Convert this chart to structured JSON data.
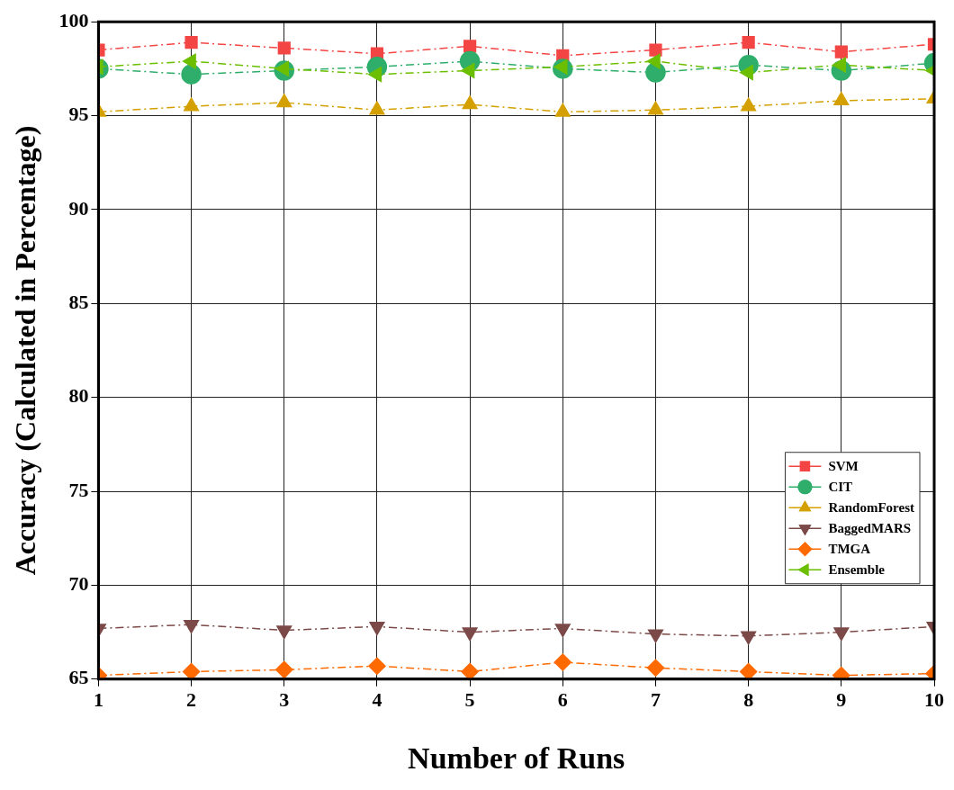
{
  "chart_data": {
    "type": "line",
    "xlabel": "Number of Runs",
    "ylabel": "Accuracy (Calculated in Percentage)",
    "x": [
      1,
      2,
      3,
      4,
      5,
      6,
      7,
      8,
      9,
      10
    ],
    "xlim": [
      1,
      10
    ],
    "xticks": [
      1,
      2,
      3,
      4,
      5,
      6,
      7,
      8,
      9,
      10
    ],
    "ylim": [
      65,
      100
    ],
    "yticks": [
      65,
      70,
      75,
      80,
      85,
      90,
      95,
      100
    ],
    "grid": true,
    "legend": "bottom right",
    "line_style": "dashed",
    "series": [
      {
        "name": "SVM",
        "color": "#f44545",
        "marker": "square",
        "values": [
          98.5,
          98.9,
          98.6,
          98.3,
          98.7,
          98.2,
          98.5,
          98.9,
          98.4,
          98.8
        ]
      },
      {
        "name": "CIT",
        "color": "#2eae6a",
        "marker": "circle",
        "values": [
          97.5,
          97.2,
          97.4,
          97.6,
          97.9,
          97.5,
          97.3,
          97.7,
          97.4,
          97.8
        ]
      },
      {
        "name": "RandomForest",
        "color": "#d4a000",
        "marker": "triangle",
        "values": [
          95.2,
          95.5,
          95.7,
          95.3,
          95.6,
          95.2,
          95.3,
          95.5,
          95.8,
          95.9
        ]
      },
      {
        "name": "BaggedMARS",
        "color": "#7b4a48",
        "marker": "triangle-down",
        "values": [
          67.7,
          67.9,
          67.6,
          67.8,
          67.5,
          67.7,
          67.4,
          67.3,
          67.5,
          67.8
        ]
      },
      {
        "name": "TMGA",
        "color": "#ff6a00",
        "marker": "diamond",
        "values": [
          65.2,
          65.4,
          65.5,
          65.7,
          65.4,
          65.9,
          65.6,
          65.4,
          65.2,
          65.3
        ]
      },
      {
        "name": "Ensemble",
        "color": "#6cbf00",
        "marker": "triangle-left",
        "values": [
          97.6,
          97.9,
          97.5,
          97.2,
          97.4,
          97.6,
          97.9,
          97.3,
          97.7,
          97.4
        ]
      }
    ]
  }
}
